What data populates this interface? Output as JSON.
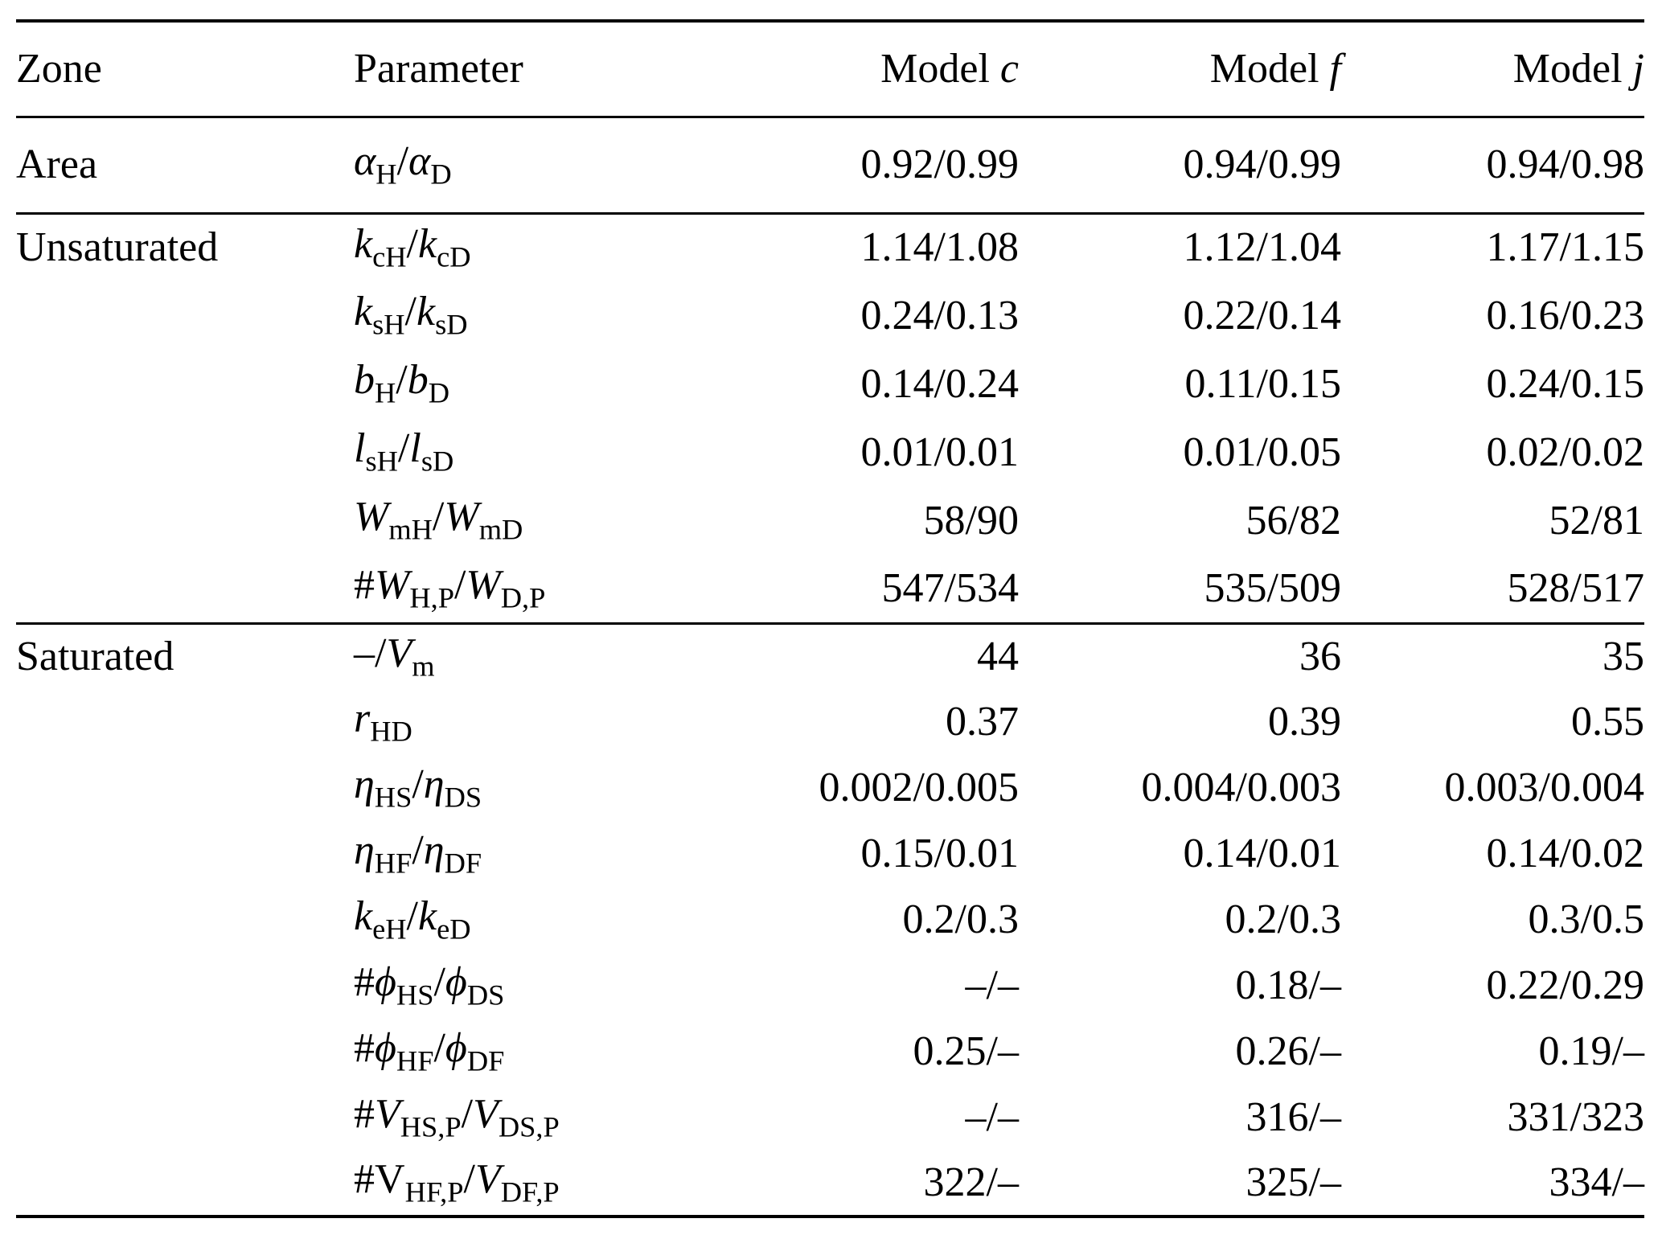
{
  "page": {
    "background": "#ffffff",
    "text_color": "#000000",
    "rule_color": "#000000"
  },
  "table": {
    "header": {
      "zone": "Zone",
      "parameter": "Parameter",
      "models": [
        {
          "segments": [
            [
              "n",
              "Model "
            ],
            [
              "i",
              "c"
            ]
          ]
        },
        {
          "segments": [
            [
              "n",
              "Model "
            ],
            [
              "i",
              "f"
            ]
          ]
        },
        {
          "segments": [
            [
              "n",
              "Model "
            ],
            [
              "i",
              "j"
            ]
          ]
        }
      ]
    },
    "sections": [
      {
        "zone": "Area",
        "rows": [
          {
            "param": [
              [
                "i",
                "α"
              ],
              [
                "s",
                "H"
              ],
              [
                "n",
                "/"
              ],
              [
                "i",
                "α"
              ],
              [
                "s",
                "D"
              ]
            ],
            "values": [
              "0.92/0.99",
              "0.94/0.99",
              "0.94/0.98"
            ]
          }
        ]
      },
      {
        "zone": "Unsaturated",
        "rows": [
          {
            "param": [
              [
                "i",
                "k"
              ],
              [
                "s",
                "cH"
              ],
              [
                "n",
                "/"
              ],
              [
                "i",
                "k"
              ],
              [
                "s",
                "cD"
              ]
            ],
            "values": [
              "1.14/1.08",
              "1.12/1.04",
              "1.17/1.15"
            ]
          },
          {
            "param": [
              [
                "i",
                "k"
              ],
              [
                "s",
                "sH"
              ],
              [
                "n",
                "/"
              ],
              [
                "i",
                "k"
              ],
              [
                "s",
                "sD"
              ]
            ],
            "values": [
              "0.24/0.13",
              "0.22/0.14",
              "0.16/0.23"
            ]
          },
          {
            "param": [
              [
                "i",
                "b"
              ],
              [
                "s",
                "H"
              ],
              [
                "n",
                "/"
              ],
              [
                "i",
                "b"
              ],
              [
                "s",
                "D"
              ]
            ],
            "values": [
              "0.14/0.24",
              "0.11/0.15",
              "0.24/0.15"
            ]
          },
          {
            "param": [
              [
                "i",
                "l"
              ],
              [
                "s",
                "sH"
              ],
              [
                "n",
                "/"
              ],
              [
                "i",
                "l"
              ],
              [
                "s",
                "sD"
              ]
            ],
            "values": [
              "0.01/0.01",
              "0.01/0.05",
              "0.02/0.02"
            ]
          },
          {
            "param": [
              [
                "i",
                "W"
              ],
              [
                "s",
                "mH"
              ],
              [
                "n",
                "/"
              ],
              [
                "i",
                "W"
              ],
              [
                "s",
                "mD"
              ]
            ],
            "values": [
              "58/90",
              "56/82",
              "52/81"
            ]
          },
          {
            "param": [
              [
                "n",
                "#"
              ],
              [
                "i",
                "W"
              ],
              [
                "s",
                "H,P"
              ],
              [
                "n",
                "/"
              ],
              [
                "i",
                "W"
              ],
              [
                "s",
                "D,P"
              ]
            ],
            "values": [
              "547/534",
              "535/509",
              "528/517"
            ]
          }
        ]
      },
      {
        "zone": "Saturated",
        "rows": [
          {
            "param": [
              [
                "n",
                "–/"
              ],
              [
                "i",
                "V"
              ],
              [
                "s",
                "m"
              ]
            ],
            "values": [
              "44",
              "36",
              "35"
            ]
          },
          {
            "param": [
              [
                "i",
                "r"
              ],
              [
                "s",
                "HD"
              ]
            ],
            "values": [
              "0.37",
              "0.39",
              "0.55"
            ]
          },
          {
            "param": [
              [
                "i",
                "η"
              ],
              [
                "s",
                "HS"
              ],
              [
                "n",
                "/"
              ],
              [
                "i",
                "η"
              ],
              [
                "s",
                "DS"
              ]
            ],
            "values": [
              "0.002/0.005",
              "0.004/0.003",
              "0.003/0.004"
            ]
          },
          {
            "param": [
              [
                "i",
                "η"
              ],
              [
                "s",
                "HF"
              ],
              [
                "n",
                "/"
              ],
              [
                "i",
                "η"
              ],
              [
                "s",
                "DF"
              ]
            ],
            "values": [
              "0.15/0.01",
              "0.14/0.01",
              "0.14/0.02"
            ]
          },
          {
            "param": [
              [
                "i",
                "k"
              ],
              [
                "s",
                "eH"
              ],
              [
                "n",
                "/"
              ],
              [
                "i",
                "k"
              ],
              [
                "s",
                "eD"
              ]
            ],
            "values": [
              "0.2/0.3",
              "0.2/0.3",
              "0.3/0.5"
            ]
          },
          {
            "param": [
              [
                "n",
                "#"
              ],
              [
                "i",
                "ϕ"
              ],
              [
                "s",
                "HS"
              ],
              [
                "n",
                "/"
              ],
              [
                "i",
                "ϕ"
              ],
              [
                "s",
                "DS"
              ]
            ],
            "values": [
              "–/–",
              "0.18/–",
              "0.22/0.29"
            ]
          },
          {
            "param": [
              [
                "n",
                "#"
              ],
              [
                "i",
                "ϕ"
              ],
              [
                "s",
                "HF"
              ],
              [
                "n",
                "/"
              ],
              [
                "i",
                "ϕ"
              ],
              [
                "s",
                "DF"
              ]
            ],
            "values": [
              "0.25/–",
              "0.26/–",
              "0.19/–"
            ]
          },
          {
            "param": [
              [
                "n",
                "#"
              ],
              [
                "i",
                "V"
              ],
              [
                "s",
                "HS,P"
              ],
              [
                "n",
                "/"
              ],
              [
                "i",
                "V"
              ],
              [
                "s",
                "DS,P"
              ]
            ],
            "values": [
              "–/–",
              "316/–",
              "331/323"
            ]
          },
          {
            "param": [
              [
                "n",
                "#V"
              ],
              [
                "s",
                "HF,P"
              ],
              [
                "n",
                "/"
              ],
              [
                "i",
                "V"
              ],
              [
                "s",
                "DF,P"
              ]
            ],
            "values": [
              "322/–",
              "325/–",
              "334/–"
            ]
          }
        ]
      }
    ]
  }
}
